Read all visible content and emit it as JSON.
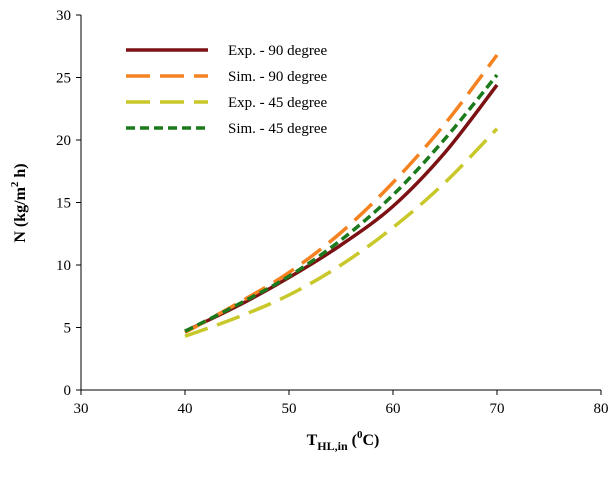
{
  "chart_data": {
    "type": "line",
    "xlabel": {
      "main": "T",
      "sub": "HL,in",
      "rest": " (",
      "sup": "0",
      "unit": "C)"
    },
    "ylabel": {
      "main": "N (kg/m",
      "sup": "2",
      "rest": " h)"
    },
    "xlim": [
      30,
      80
    ],
    "ylim": [
      0,
      30
    ],
    "xticks": [
      30,
      40,
      50,
      60,
      70,
      80
    ],
    "yticks": [
      0,
      5,
      10,
      15,
      20,
      25,
      30
    ],
    "grid": false,
    "legend_position": "top-left",
    "x": [
      40,
      45,
      50,
      55,
      60,
      65,
      70
    ],
    "series": [
      {
        "name": "Exp. - 90 degree",
        "color": "#7b1113",
        "dash": "solid",
        "values": [
          4.7,
          6.7,
          9.0,
          11.6,
          14.7,
          19.0,
          24.4
        ]
      },
      {
        "name": "Sim. - 90 degree",
        "color": "#f58220",
        "dash": "long",
        "values": [
          4.6,
          6.9,
          9.4,
          12.6,
          16.6,
          21.3,
          26.8
        ]
      },
      {
        "name": "Exp. - 45 degree",
        "color": "#c8c82a",
        "dash": "long",
        "values": [
          4.3,
          5.8,
          7.6,
          10.0,
          13.0,
          16.6,
          20.9
        ]
      },
      {
        "name": "Sim. - 45 degree",
        "color": "#1b7a1b",
        "dash": "short",
        "values": [
          4.7,
          6.8,
          9.1,
          12.0,
          15.6,
          20.1,
          25.2
        ]
      }
    ]
  }
}
